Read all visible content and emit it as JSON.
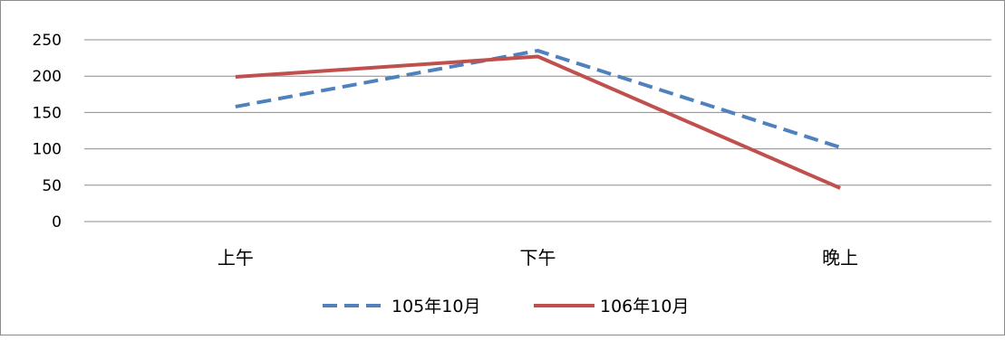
{
  "chart_data": {
    "type": "line",
    "categories": [
      "上午",
      "下午",
      "晚上"
    ],
    "series": [
      {
        "name": "105年10月",
        "values": [
          158,
          235,
          102
        ],
        "color": "#4f81bd",
        "style": "dashed"
      },
      {
        "name": "106年10月",
        "values": [
          199,
          227,
          46
        ],
        "color": "#c0504d",
        "style": "solid"
      }
    ],
    "yticks": [
      0,
      50,
      100,
      150,
      200,
      250
    ],
    "ylim": [
      0,
      250
    ],
    "grid": true,
    "legend": "bottom"
  }
}
